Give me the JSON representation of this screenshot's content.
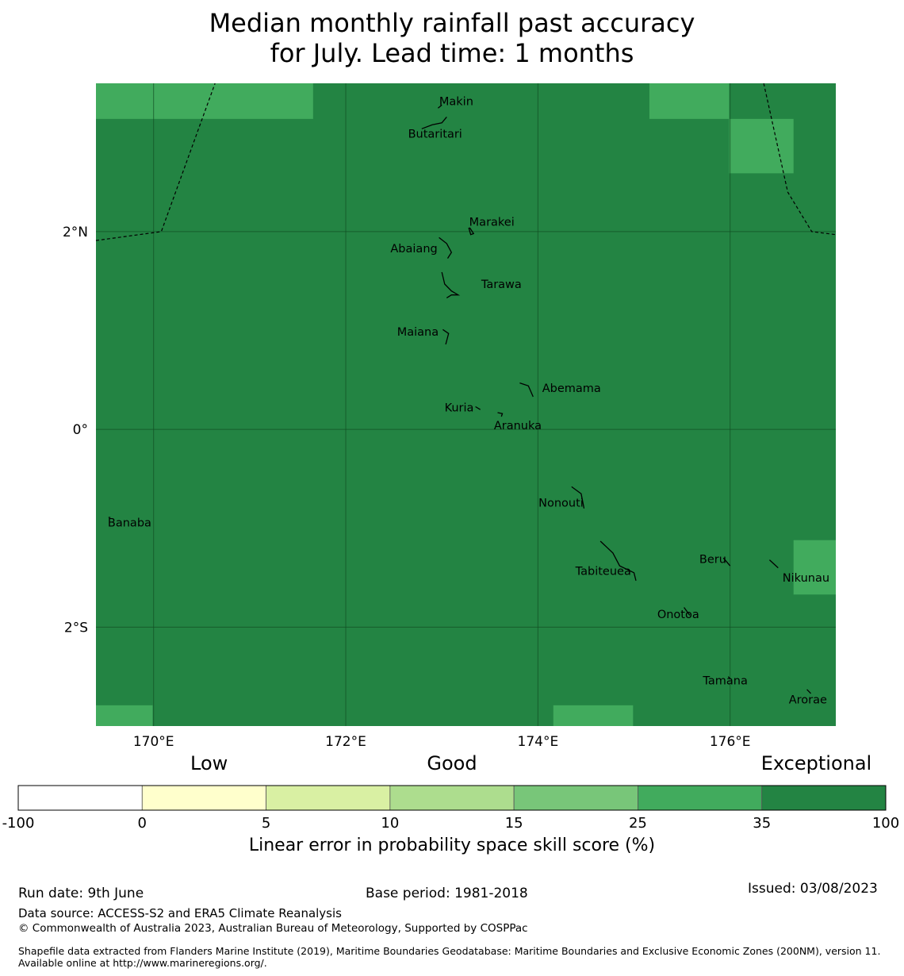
{
  "title": {
    "line1": "Median monthly rainfall past accuracy",
    "line2": "for July. Lead time: 1 months"
  },
  "map": {
    "lon_range": [
      169.4,
      177.1
    ],
    "lat_range": [
      -3.0,
      3.5
    ],
    "base_color": "#238443",
    "lighter_color": "#41ab5d",
    "lon_ticks": [
      {
        "value": 170,
        "label": "170°E"
      },
      {
        "value": 172,
        "label": "172°E"
      },
      {
        "value": 174,
        "label": "174°E"
      },
      {
        "value": 176,
        "label": "176°E"
      }
    ],
    "lat_ticks": [
      {
        "value": 2,
        "label": "2°N"
      },
      {
        "value": 0,
        "label": "0°"
      },
      {
        "value": -2,
        "label": "2°S"
      }
    ],
    "lighter_cells": [
      {
        "lon": [
          169.4,
          171.66
        ],
        "lat": [
          3.14,
          3.5
        ]
      },
      {
        "lon": [
          175.16,
          175.99
        ],
        "lat": [
          3.14,
          3.5
        ]
      },
      {
        "lon": [
          175.99,
          176.66
        ],
        "lat": [
          2.59,
          3.14
        ]
      },
      {
        "lon": [
          176.66,
          177.1
        ],
        "lat": [
          -1.67,
          -1.12
        ]
      },
      {
        "lon": [
          169.4,
          169.99
        ],
        "lat": [
          -3.0,
          -2.79
        ]
      },
      {
        "lon": [
          174.16,
          174.99
        ],
        "lat": [
          -3.0,
          -2.79
        ]
      }
    ],
    "boundaries": [
      [
        [
          169.4,
          1.91
        ],
        [
          170.08,
          2.0
        ],
        [
          170.64,
          3.5
        ]
      ],
      [
        [
          176.35,
          3.5
        ],
        [
          176.6,
          2.4
        ],
        [
          176.85,
          2.0
        ],
        [
          177.1,
          1.97
        ]
      ]
    ],
    "islands": [
      {
        "name": "Makin",
        "label_at": [
          173.15,
          3.32
        ],
        "shape": [
          [
            172.96,
            3.25
          ],
          [
            173.0,
            3.28
          ]
        ]
      },
      {
        "name": "Butaritari",
        "label_at": [
          172.93,
          2.99
        ],
        "shape": [
          [
            172.79,
            3.04
          ],
          [
            172.9,
            3.08
          ],
          [
            173.0,
            3.1
          ],
          [
            173.05,
            3.16
          ]
        ]
      },
      {
        "name": "Marakei",
        "label_at": [
          173.52,
          2.1
        ],
        "shape": [
          [
            173.28,
            2.04
          ],
          [
            173.3,
            1.97
          ],
          [
            173.33,
            1.98
          ],
          [
            173.29,
            2.04
          ]
        ]
      },
      {
        "name": "Abaiang",
        "label_at": [
          172.71,
          1.83
        ],
        "shape": [
          [
            172.97,
            1.94
          ],
          [
            173.05,
            1.88
          ],
          [
            173.1,
            1.79
          ],
          [
            173.06,
            1.73
          ]
        ]
      },
      {
        "name": "Tarawa",
        "label_at": [
          173.62,
          1.47
        ],
        "shape": [
          [
            173.0,
            1.59
          ],
          [
            173.03,
            1.47
          ],
          [
            173.1,
            1.4
          ],
          [
            173.17,
            1.36
          ],
          [
            173.1,
            1.36
          ],
          [
            173.05,
            1.33
          ]
        ]
      },
      {
        "name": "Maiana",
        "label_at": [
          172.75,
          0.99
        ],
        "shape": [
          [
            173.01,
            1.01
          ],
          [
            173.07,
            0.97
          ],
          [
            173.04,
            0.86
          ]
        ]
      },
      {
        "name": "Abemama",
        "label_at": [
          174.35,
          0.42
        ],
        "shape": [
          [
            173.81,
            0.47
          ],
          [
            173.9,
            0.44
          ],
          [
            173.95,
            0.33
          ]
        ]
      },
      {
        "name": "Kuria",
        "label_at": [
          173.18,
          0.22
        ],
        "shape": [
          [
            173.35,
            0.23
          ],
          [
            173.4,
            0.2
          ]
        ]
      },
      {
        "name": "Aranuka",
        "label_at": [
          173.79,
          0.04
        ],
        "shape": [
          [
            173.58,
            0.17
          ],
          [
            173.63,
            0.16
          ],
          [
            173.62,
            0.13
          ]
        ]
      },
      {
        "name": "Nonouti",
        "label_at": [
          174.24,
          -0.74
        ],
        "shape": [
          [
            174.35,
            -0.58
          ],
          [
            174.45,
            -0.65
          ],
          [
            174.48,
            -0.8
          ]
        ]
      },
      {
        "name": "Tabiteuea",
        "label_at": [
          174.68,
          -1.43
        ],
        "shape": [
          [
            174.65,
            -1.13
          ],
          [
            174.78,
            -1.25
          ],
          [
            174.85,
            -1.38
          ],
          [
            175.0,
            -1.45
          ],
          [
            175.02,
            -1.53
          ]
        ]
      },
      {
        "name": "Beru",
        "label_at": [
          175.82,
          -1.31
        ],
        "shape": [
          [
            175.93,
            -1.3
          ],
          [
            176.0,
            -1.38
          ]
        ]
      },
      {
        "name": "Nikunau",
        "label_at": [
          176.79,
          -1.5
        ],
        "shape": [
          [
            176.41,
            -1.32
          ],
          [
            176.5,
            -1.4
          ]
        ]
      },
      {
        "name": "Onotoa",
        "label_at": [
          175.46,
          -1.87
        ],
        "shape": [
          [
            175.52,
            -1.8
          ],
          [
            175.58,
            -1.88
          ]
        ]
      },
      {
        "name": "Tamana",
        "label_at": [
          175.95,
          -2.54
        ],
        "shape": [
          [
            175.98,
            -2.5
          ],
          [
            176.0,
            -2.52
          ]
        ]
      },
      {
        "name": "Arorae",
        "label_at": [
          176.81,
          -2.73
        ],
        "shape": [
          [
            176.8,
            -2.63
          ],
          [
            176.84,
            -2.67
          ]
        ]
      },
      {
        "name": "Banaba",
        "label_at": [
          169.75,
          -0.94
        ],
        "shape": [
          [
            169.53,
            -0.89
          ],
          [
            169.55,
            -0.89
          ]
        ]
      }
    ]
  },
  "colorbar": {
    "categories": [
      {
        "label": "Low",
        "at": 0.22
      },
      {
        "label": "Good",
        "at": 0.5
      },
      {
        "label": "Exceptional",
        "at": 0.92
      }
    ],
    "ticks": [
      "-100",
      "0",
      "5",
      "10",
      "15",
      "25",
      "35",
      "100"
    ],
    "colors": [
      "#ffffff",
      "#ffffcc",
      "#d9f0a3",
      "#addd8e",
      "#78c679",
      "#41ab5d",
      "#238443"
    ],
    "label": "Linear error in probability space skill score (%)"
  },
  "footer": {
    "run_date": "Run date: 9th June",
    "base_period": "Base period: 1981-2018",
    "issued": "Issued: 03/08/2023",
    "data_source": "Data source: ACCESS-S2 and ERA5 Climate Reanalysis",
    "copyright": "© Commonwealth of Australia 2023, Australian Bureau of Meteorology, Supported by COSPPac",
    "shapefile": "Shapefile data extracted from Flanders Marine Institute (2019), Maritime Boundaries Geodatabase: Maritime Boundaries and Exclusive Economic Zones (200NM), version 11. Available online at http://www.marineregions.org/."
  }
}
